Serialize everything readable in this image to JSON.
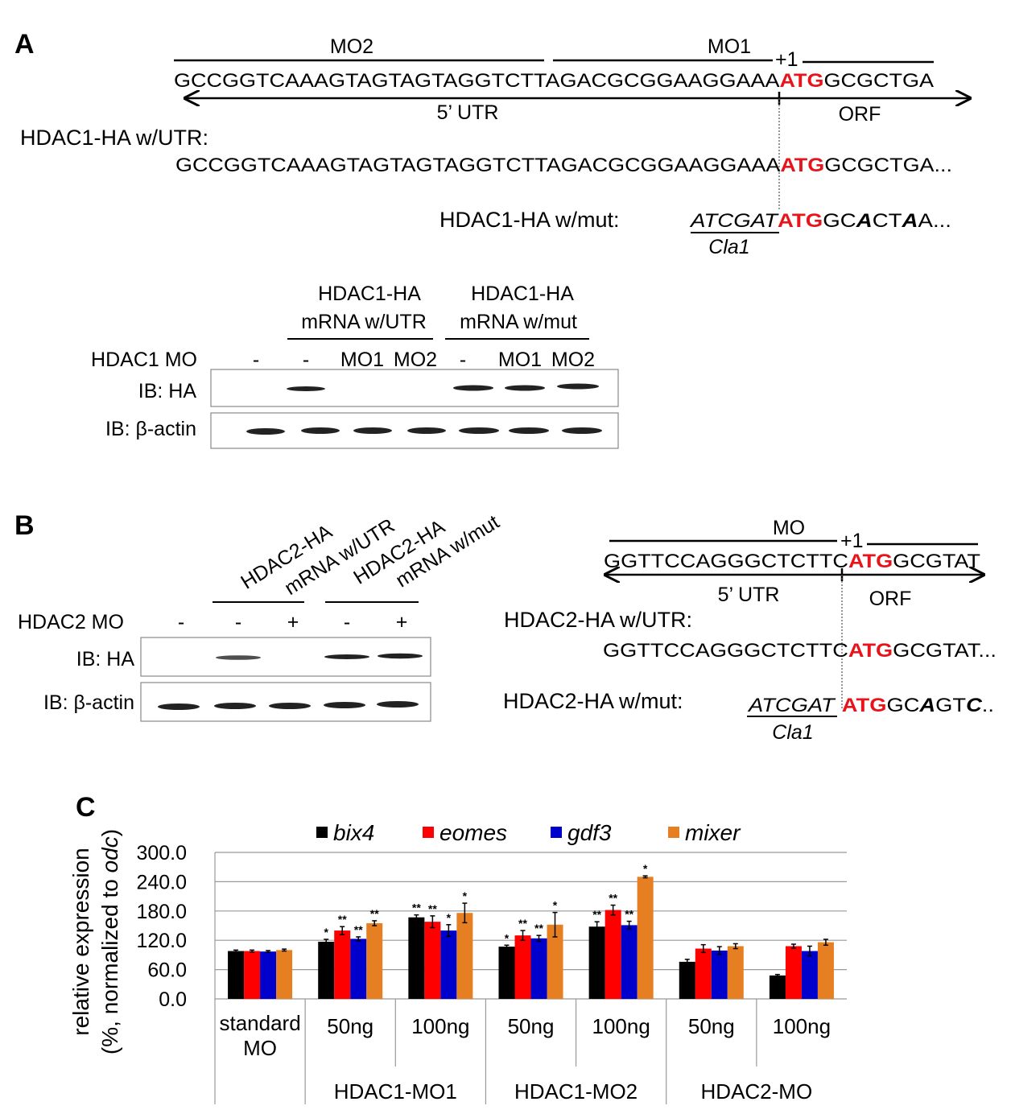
{
  "panel_a": {
    "label": "A",
    "mo2": "MO2",
    "mo1": "MO1",
    "start": "+1",
    "sequence": [
      "GCCGGTCAAAGTAGTAGTAGGTCTTAGACGCGGAAGGAAA",
      "ATG",
      "GCGCTGA"
    ],
    "utr": "5’ UTR",
    "orf": "ORF",
    "utr_construct": "HDAC1-HA w/UTR:",
    "utr_sequence": [
      "GCCGGTCAAAGTAGTAGTAGGTCTTAGACGCGGAAGGAAA",
      "ATG",
      "GCGCTGA..."
    ],
    "mut_construct": "HDAC1-HA w/mut:",
    "mut_sequence": [
      "ATCGAT",
      "ATG",
      "GC",
      "A",
      "CT",
      "A",
      "A..."
    ],
    "site": "Cla1",
    "blot": {
      "headers": [
        [
          "HDAC1-HA",
          "mRNA w/UTR"
        ],
        [
          "HDAC1-HA",
          "mRNA w/mut"
        ]
      ],
      "treatment": "HDAC1 MO",
      "lanes": [
        "-",
        "-",
        "MO1",
        "MO2",
        "-",
        "MO1",
        "MO2"
      ],
      "rows": [
        "IB: HA",
        "IB: β-actin"
      ]
    }
  },
  "panel_b": {
    "label": "B",
    "blot": {
      "headers": [
        [
          "HDAC2-HA",
          "mRNA w/UTR"
        ],
        [
          "HDAC2-HA",
          "mRNA w/mut"
        ]
      ],
      "treatment": "HDAC2 MO",
      "lanes": [
        "-",
        "-",
        "+",
        "-",
        "+"
      ],
      "rows": [
        "IB: HA",
        "IB: β-actin"
      ]
    },
    "mo": "MO",
    "start": "+1",
    "sequence": [
      "GGTTCCAGGGCTCTTC",
      "ATG",
      "GCGTAT"
    ],
    "utr": "5’ UTR",
    "orf": "ORF",
    "utr_construct": "HDAC2-HA w/UTR:",
    "utr_sequence": [
      "GGTTCCAGGGCTCTTC",
      "ATG",
      "GCGTAT..."
    ],
    "mut_construct": "HDAC2-HA w/mut:",
    "mut_sequence": [
      "ATCGAT",
      "ATG",
      "GC",
      "A",
      "GT",
      "C",
      ".."
    ],
    "site": "Cla1"
  },
  "chart_data": {
    "type": "bar",
    "label": "C",
    "ylabel": [
      "relative expression",
      "(%, normalized to ",
      "odc",
      ")"
    ],
    "categories": [
      "standard MO",
      "50ng",
      "100ng",
      "50ng",
      "100ng",
      "50ng",
      "100ng"
    ],
    "groups": [
      "HDAC1-MO1",
      "HDAC1-MO2",
      "HDAC2-MO"
    ],
    "ylim": [
      0,
      300
    ],
    "yticks": [
      {
        "value": 0,
        "label": "0.0"
      },
      {
        "value": 60,
        "label": "60.0"
      },
      {
        "value": 120,
        "label": "120.0"
      },
      {
        "value": 180,
        "label": "180.0"
      },
      {
        "value": 240,
        "label": "240.0"
      },
      {
        "value": 300,
        "label": "300.0"
      }
    ],
    "grid": true,
    "series": [
      {
        "name": "bix4",
        "color": "#000000",
        "values": [
          98,
          117,
          167,
          107,
          148,
          76,
          48
        ],
        "errors": [
          2,
          5,
          5,
          3,
          10,
          5,
          2
        ],
        "significance": [
          null,
          "*",
          "**",
          "*",
          "**",
          null,
          null
        ]
      },
      {
        "name": "eomes",
        "color": "#ff0000",
        "values": [
          98,
          140,
          158,
          130,
          182,
          103,
          108
        ],
        "errors": [
          2,
          8,
          12,
          10,
          10,
          8,
          4
        ],
        "significance": [
          null,
          "**",
          "**",
          "**",
          "**",
          null,
          null
        ]
      },
      {
        "name": "gdf3",
        "color": "#0000cc",
        "values": [
          97,
          123,
          140,
          124,
          151,
          99,
          98
        ],
        "errors": [
          2,
          4,
          12,
          6,
          8,
          8,
          10
        ],
        "significance": [
          null,
          "**",
          "*",
          "**",
          "**",
          null,
          null
        ]
      },
      {
        "name": "mixer",
        "color": "#e67e22",
        "values": [
          100,
          155,
          176,
          152,
          250,
          108,
          116
        ],
        "errors": [
          2,
          5,
          20,
          25,
          2,
          5,
          6
        ],
        "significance": [
          null,
          "**",
          "*",
          "*",
          "*",
          null,
          null
        ]
      }
    ]
  }
}
